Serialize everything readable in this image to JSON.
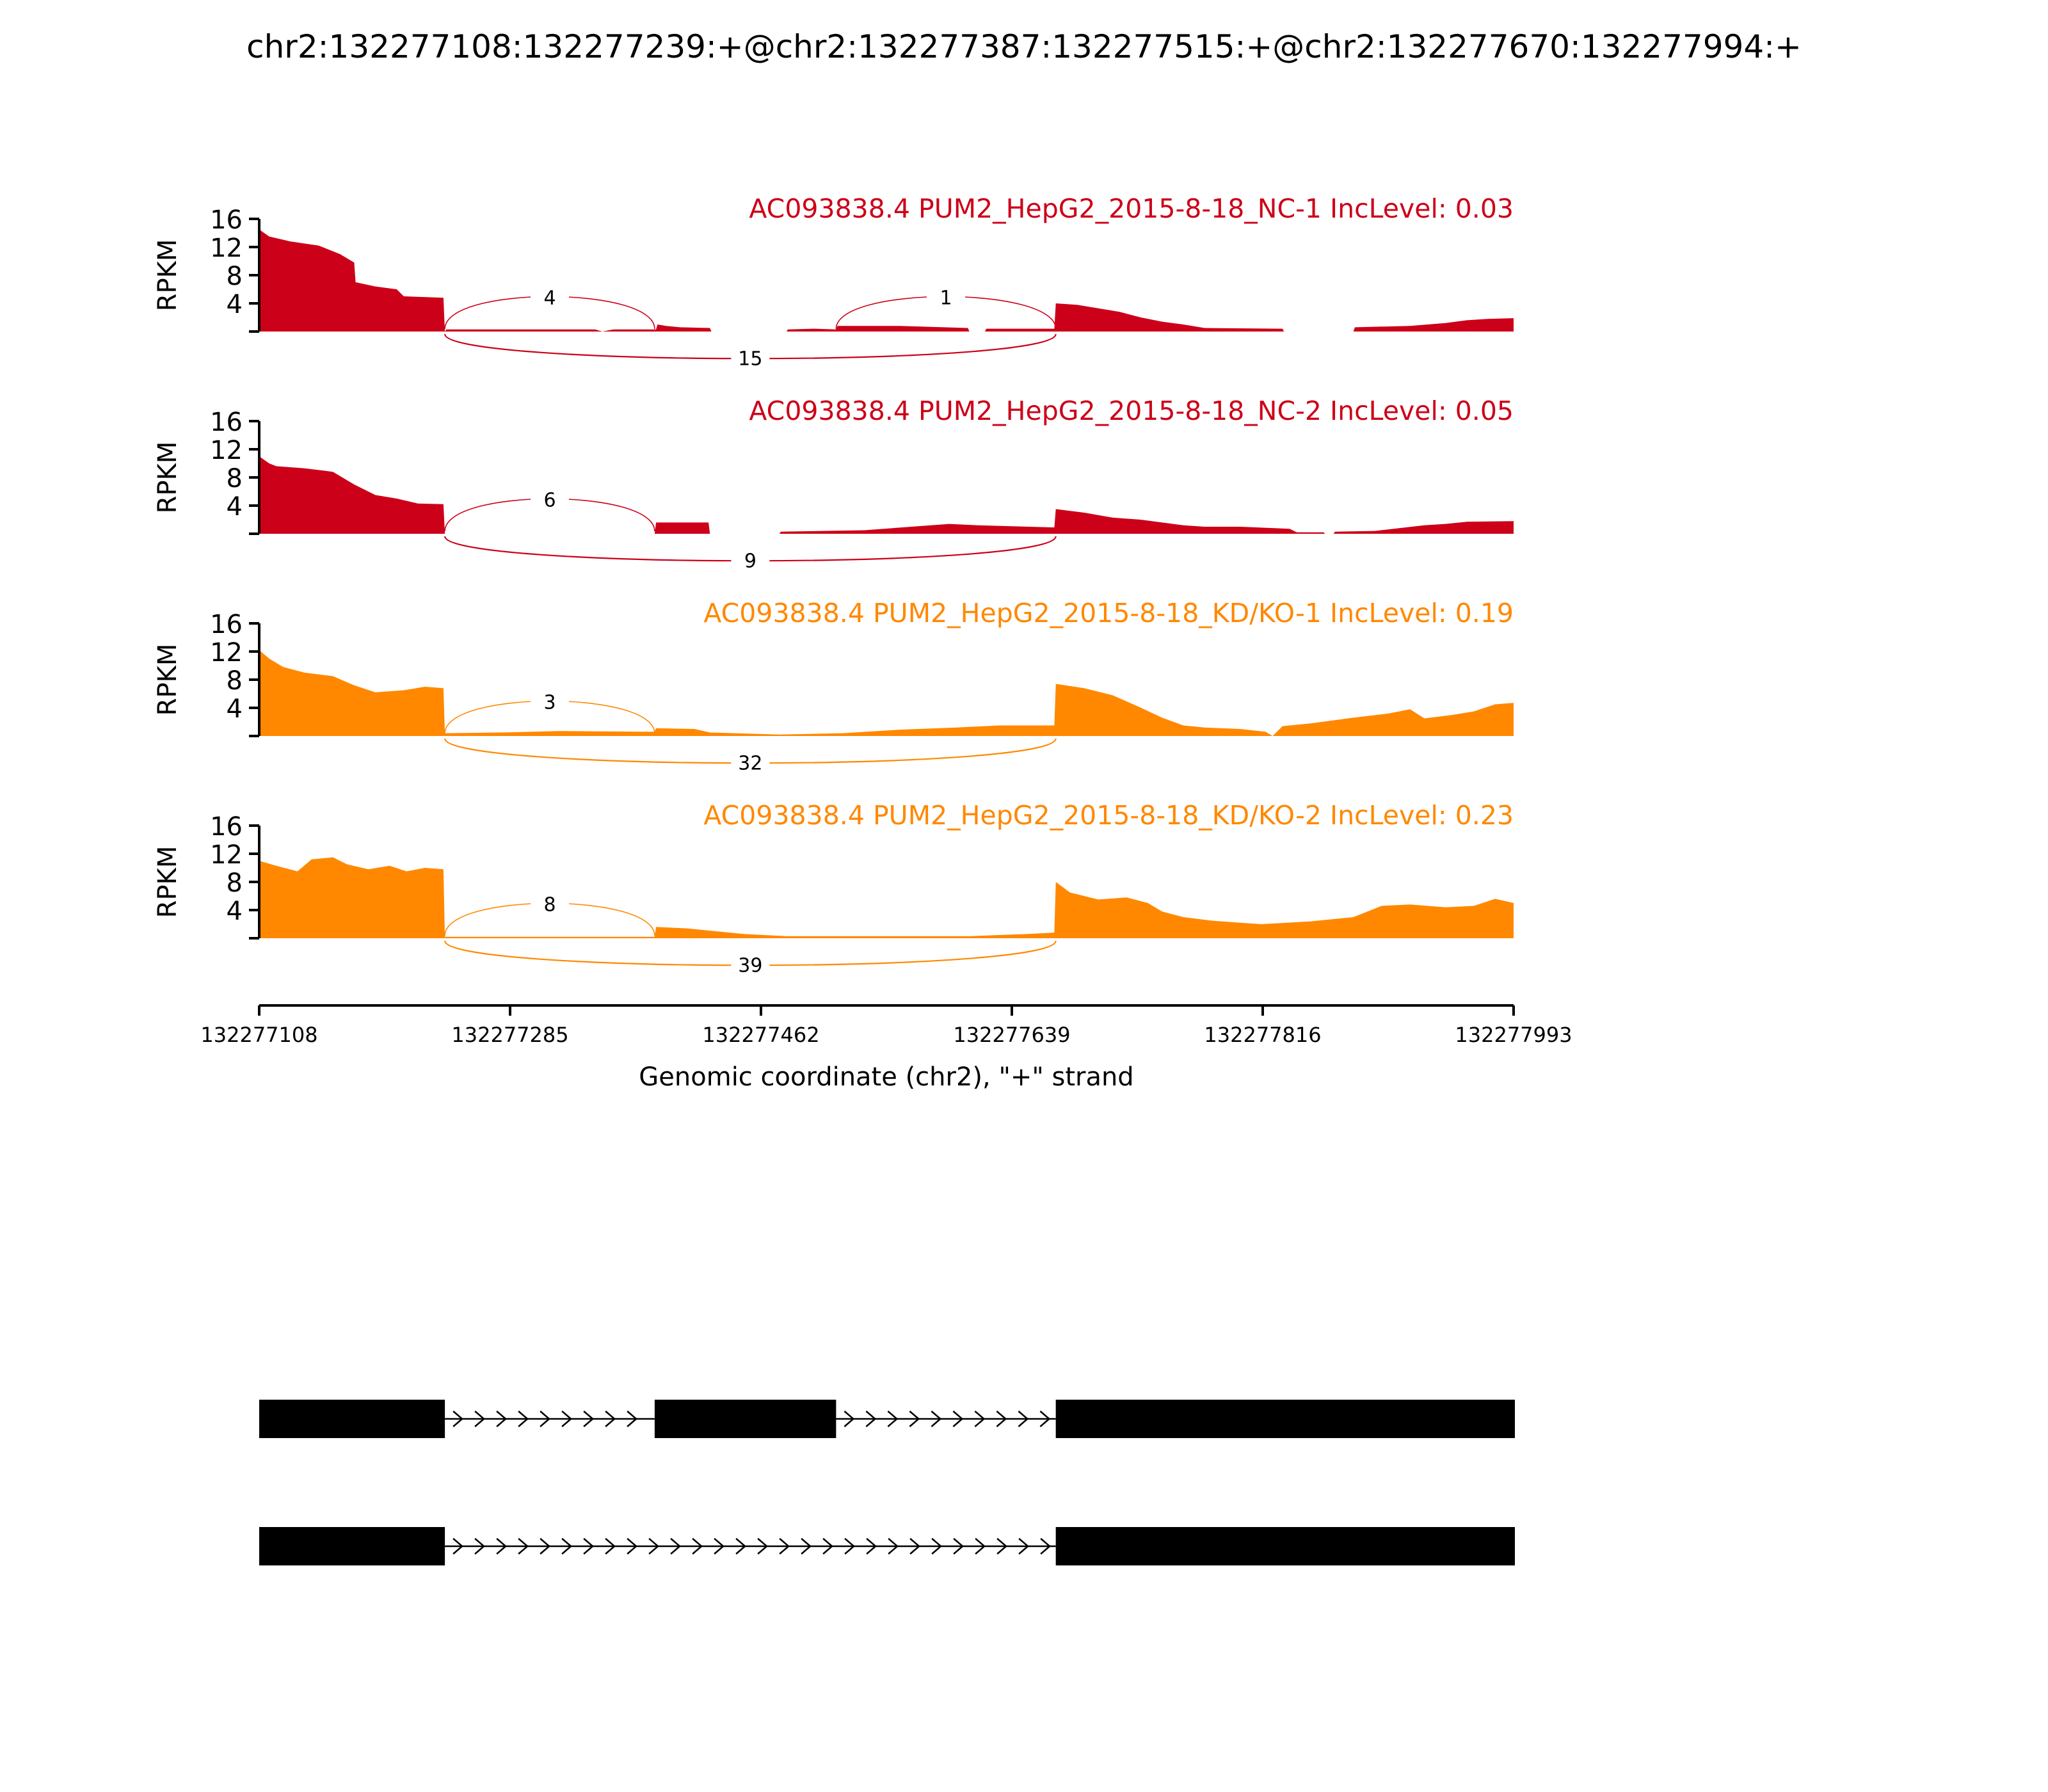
{
  "title": "chr2:132277108:132277239:+@chr2:132277387:132277515:+@chr2:132277670:132277994:+",
  "colors": {
    "nc": "#cc0018",
    "kd": "#ff8800",
    "axis": "#000000",
    "exon": "#000000"
  },
  "chart_data": {
    "type": "area",
    "xlabel": "Genomic coordinate (chr2), \"+\" strand",
    "xlim": [
      132277108,
      132277993
    ],
    "xticks": [
      132277108,
      132277285,
      132277462,
      132277639,
      132277816,
      132277993
    ],
    "xtick_labels": [
      "132277108",
      "132277285",
      "132277462",
      "132277639",
      "132277816",
      "132277993"
    ],
    "ylabel": "RPKM",
    "ylim": [
      0,
      16
    ],
    "yticks": [
      4,
      8,
      12,
      16
    ],
    "ytick_labels": [
      "4",
      "8",
      "12",
      "16"
    ],
    "tracks": [
      {
        "label": "AC093838.4 PUM2_HepG2_2015-8-18_NC-1 IncLevel: 0.03",
        "color_key": "nc",
        "coverage": [
          [
            132277108,
            14.5
          ],
          [
            132277115,
            13.5
          ],
          [
            132277130,
            12.8
          ],
          [
            132277150,
            12.2
          ],
          [
            132277165,
            11
          ],
          [
            132277175,
            9.8
          ],
          [
            132277176,
            7
          ],
          [
            132277190,
            6.4
          ],
          [
            132277205,
            6
          ],
          [
            132277210,
            5
          ],
          [
            132277238,
            4.8
          ],
          [
            132277239,
            0
          ],
          [
            132277240,
            0.3
          ],
          [
            132277345,
            0.3
          ],
          [
            132277350,
            0
          ],
          [
            132277358,
            0.3
          ],
          [
            132277388,
            0.3
          ],
          [
            132277389,
            1
          ],
          [
            132277395,
            0.8
          ],
          [
            132277405,
            0.6
          ],
          [
            132277426,
            0.5
          ],
          [
            132277427,
            0
          ],
          [
            132277480,
            0
          ],
          [
            132277481,
            0.3
          ],
          [
            132277500,
            0.4
          ],
          [
            132277515,
            0.3
          ],
          [
            132277516,
            0.8
          ],
          [
            132277560,
            0.8
          ],
          [
            132277608,
            0.5
          ],
          [
            132277609,
            0
          ],
          [
            132277620,
            0
          ],
          [
            132277621,
            0.4
          ],
          [
            132277669,
            0.4
          ],
          [
            132277670,
            4
          ],
          [
            132277685,
            3.8
          ],
          [
            132277700,
            3.3
          ],
          [
            132277715,
            2.8
          ],
          [
            132277730,
            2
          ],
          [
            132277745,
            1.4
          ],
          [
            132277760,
            1
          ],
          [
            132277775,
            0.5
          ],
          [
            132277830,
            0.4
          ],
          [
            132277831,
            0
          ],
          [
            132277880,
            0
          ],
          [
            132277881,
            0.6
          ],
          [
            132277920,
            0.8
          ],
          [
            132277945,
            1.2
          ],
          [
            132277960,
            1.6
          ],
          [
            132277975,
            1.8
          ],
          [
            132277993,
            1.9
          ]
        ],
        "arcs": [
          {
            "start": 132277239,
            "end": 132277387,
            "count": "4",
            "side": "top"
          },
          {
            "start": 132277515,
            "end": 132277670,
            "count": "1",
            "side": "top"
          },
          {
            "start": 132277239,
            "end": 132277670,
            "count": "15",
            "side": "bottom"
          }
        ]
      },
      {
        "label": "AC093838.4 PUM2_HepG2_2015-8-18_NC-2 IncLevel: 0.05",
        "color_key": "nc",
        "coverage": [
          [
            132277108,
            11
          ],
          [
            132277115,
            10
          ],
          [
            132277120,
            9.6
          ],
          [
            132277140,
            9.3
          ],
          [
            132277160,
            8.8
          ],
          [
            132277175,
            7
          ],
          [
            132277190,
            5.5
          ],
          [
            132277205,
            5
          ],
          [
            132277220,
            4.3
          ],
          [
            132277238,
            4.2
          ],
          [
            132277239,
            0
          ],
          [
            132277387,
            0
          ],
          [
            132277388,
            1.6
          ],
          [
            132277425,
            1.6
          ],
          [
            132277426,
            0
          ],
          [
            132277475,
            0
          ],
          [
            132277476,
            0.3
          ],
          [
            132277535,
            0.5
          ],
          [
            132277595,
            1.4
          ],
          [
            132277615,
            1.2
          ],
          [
            132277669,
            0.9
          ],
          [
            132277670,
            3.5
          ],
          [
            132277690,
            3
          ],
          [
            132277710,
            2.3
          ],
          [
            132277730,
            2
          ],
          [
            132277745,
            1.6
          ],
          [
            132277760,
            1.2
          ],
          [
            132277775,
            1.0
          ],
          [
            132277800,
            1.0
          ],
          [
            132277835,
            0.7
          ],
          [
            132277840,
            0.2
          ],
          [
            132277859,
            0.2
          ],
          [
            132277860,
            0
          ],
          [
            132277866,
            0
          ],
          [
            132277867,
            0.3
          ],
          [
            132277895,
            0.4
          ],
          [
            132277930,
            1.2
          ],
          [
            132277945,
            1.4
          ],
          [
            132277960,
            1.7
          ],
          [
            132277993,
            1.8
          ]
        ],
        "arcs": [
          {
            "start": 132277239,
            "end": 132277387,
            "count": "6",
            "side": "top"
          },
          {
            "start": 132277239,
            "end": 132277670,
            "count": "9",
            "side": "bottom"
          }
        ]
      },
      {
        "label": "AC093838.4 PUM2_HepG2_2015-8-18_KD/KO-1 IncLevel: 0.19",
        "color_key": "kd",
        "coverage": [
          [
            132277108,
            12.2
          ],
          [
            132277115,
            11
          ],
          [
            132277125,
            9.8
          ],
          [
            132277140,
            9
          ],
          [
            132277160,
            8.5
          ],
          [
            132277175,
            7.2
          ],
          [
            132277190,
            6.2
          ],
          [
            132277210,
            6.5
          ],
          [
            132277225,
            7
          ],
          [
            132277238,
            6.8
          ],
          [
            132277239,
            0.4
          ],
          [
            132277280,
            0.5
          ],
          [
            132277320,
            0.7
          ],
          [
            132277387,
            0.6
          ],
          [
            132277388,
            1.1
          ],
          [
            132277415,
            1.0
          ],
          [
            132277426,
            0.5
          ],
          [
            132277475,
            0.2
          ],
          [
            132277520,
            0.4
          ],
          [
            132277560,
            0.9
          ],
          [
            132277600,
            1.2
          ],
          [
            132277630,
            1.5
          ],
          [
            132277669,
            1.5
          ],
          [
            132277670,
            7.4
          ],
          [
            132277690,
            6.8
          ],
          [
            132277710,
            5.8
          ],
          [
            132277728,
            4.2
          ],
          [
            132277745,
            2.6
          ],
          [
            132277760,
            1.5
          ],
          [
            132277775,
            1.2
          ],
          [
            132277800,
            1.0
          ],
          [
            132277818,
            0.6
          ],
          [
            132277823,
            0
          ],
          [
            132277830,
            1.4
          ],
          [
            132277850,
            1.8
          ],
          [
            132277880,
            2.6
          ],
          [
            132277905,
            3.2
          ],
          [
            132277920,
            3.8
          ],
          [
            132277930,
            2.5
          ],
          [
            132277950,
            3.0
          ],
          [
            132277965,
            3.5
          ],
          [
            132277980,
            4.5
          ],
          [
            132277993,
            4.7
          ]
        ],
        "arcs": [
          {
            "start": 132277239,
            "end": 132277387,
            "count": "3",
            "side": "top"
          },
          {
            "start": 132277239,
            "end": 132277670,
            "count": "32",
            "side": "bottom"
          }
        ]
      },
      {
        "label": "AC093838.4 PUM2_HepG2_2015-8-18_KD/KO-2 IncLevel: 0.23",
        "color_key": "kd",
        "coverage": [
          [
            132277108,
            11
          ],
          [
            132277120,
            10.3
          ],
          [
            132277135,
            9.5
          ],
          [
            132277145,
            11.2
          ],
          [
            132277160,
            11.5
          ],
          [
            132277170,
            10.5
          ],
          [
            132277185,
            9.8
          ],
          [
            132277200,
            10.3
          ],
          [
            132277212,
            9.5
          ],
          [
            132277225,
            10
          ],
          [
            132277238,
            9.8
          ],
          [
            132277239,
            0.2
          ],
          [
            132277340,
            0.2
          ],
          [
            132277387,
            0.2
          ],
          [
            132277388,
            1.6
          ],
          [
            132277410,
            1.4
          ],
          [
            132277450,
            0.6
          ],
          [
            132277480,
            0.3
          ],
          [
            132277560,
            0.3
          ],
          [
            132277610,
            0.3
          ],
          [
            132277650,
            0.6
          ],
          [
            132277669,
            0.8
          ],
          [
            132277670,
            8
          ],
          [
            132277680,
            6.5
          ],
          [
            132277700,
            5.5
          ],
          [
            132277720,
            5.8
          ],
          [
            132277735,
            5
          ],
          [
            132277745,
            3.8
          ],
          [
            132277760,
            3
          ],
          [
            132277780,
            2.5
          ],
          [
            132277800,
            2.2
          ],
          [
            132277815,
            2.0
          ],
          [
            132277850,
            2.4
          ],
          [
            132277880,
            3.0
          ],
          [
            132277900,
            4.6
          ],
          [
            132277920,
            4.8
          ],
          [
            132277945,
            4.4
          ],
          [
            132277965,
            4.6
          ],
          [
            132277980,
            5.6
          ],
          [
            132277993,
            5.0
          ]
        ],
        "arcs": [
          {
            "start": 132277239,
            "end": 132277387,
            "count": "8",
            "side": "top"
          },
          {
            "start": 132277239,
            "end": 132277670,
            "count": "39",
            "side": "bottom"
          }
        ]
      }
    ],
    "isoforms": [
      {
        "exons": [
          [
            132277108,
            132277239
          ],
          [
            132277387,
            132277515
          ],
          [
            132277670,
            132277994
          ]
        ]
      },
      {
        "exons": [
          [
            132277108,
            132277239
          ],
          [
            132277670,
            132277994
          ]
        ]
      }
    ]
  }
}
